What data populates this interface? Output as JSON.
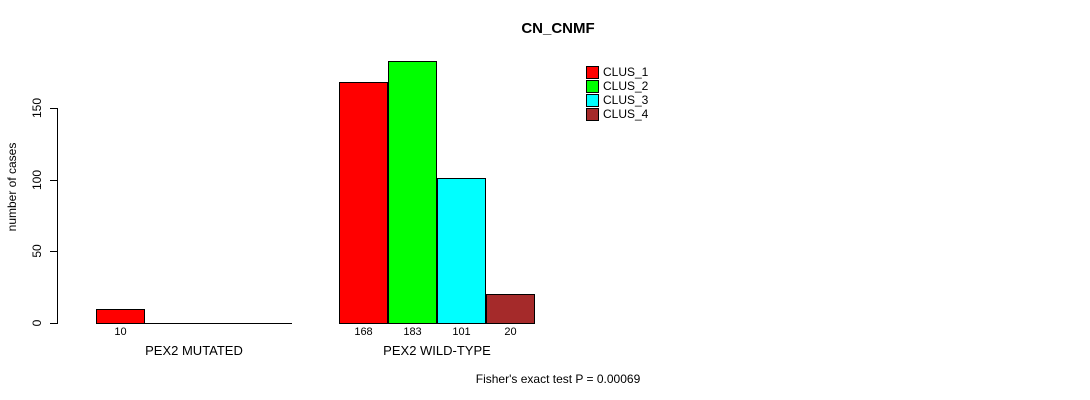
{
  "chart_data": {
    "type": "bar",
    "title": "CN_CNMF",
    "ylabel": "number of cases",
    "xlabel": "",
    "yticks": [
      0,
      50,
      100,
      150
    ],
    "ylim": [
      0,
      190
    ],
    "grid": false,
    "legend_position": "top-right",
    "categories": [
      "PEX2 MUTATED",
      "PEX2 WILD-TYPE"
    ],
    "series": [
      {
        "name": "CLUS_1",
        "color": "#FF0000",
        "values": [
          10,
          168
        ]
      },
      {
        "name": "CLUS_2",
        "color": "#00FF00",
        "values": [
          0,
          183
        ]
      },
      {
        "name": "CLUS_3",
        "color": "#00FFFF",
        "values": [
          0,
          101
        ]
      },
      {
        "name": "CLUS_4",
        "color": "#A52A2A",
        "values": [
          0,
          20
        ]
      }
    ],
    "groups": [
      {
        "label": "PEX2 MUTATED",
        "value_labels": [
          "10",
          "",
          "",
          ""
        ]
      },
      {
        "label": "PEX2 WILD-TYPE",
        "value_labels": [
          "168",
          "183",
          "101",
          "20"
        ]
      }
    ],
    "annotation": "Fisher's exact test P = 0.00069",
    "axis_color": "#000000",
    "background_color": "#FFFFFF"
  }
}
